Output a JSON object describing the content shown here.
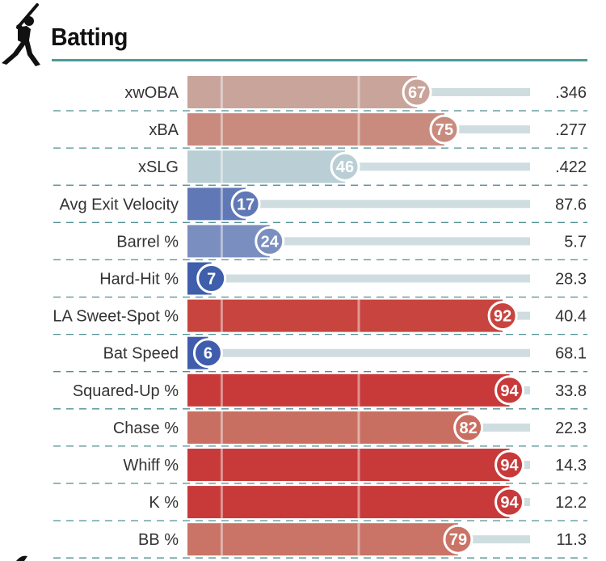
{
  "header": {
    "title": "Batting"
  },
  "chart_data": {
    "type": "bar",
    "orientation": "horizontal",
    "title": "Batting",
    "xlim": [
      0,
      100
    ],
    "reference_lines": [
      10,
      50
    ],
    "color_scale": {
      "low": "#3d5eab",
      "mid": "#b9d1d8",
      "high": "#c9353a"
    },
    "rows": [
      {
        "label": "xwOBA",
        "percentile": 67,
        "value": ".346",
        "color": "#c9a49b"
      },
      {
        "label": "xBA",
        "percentile": 75,
        "value": ".277",
        "color": "#c98b7e"
      },
      {
        "label": "xSLG",
        "percentile": 46,
        "value": ".422",
        "color": "#b9cfd5"
      },
      {
        "label": "Avg Exit Velocity",
        "percentile": 17,
        "value": "87.6",
        "color": "#6079b6"
      },
      {
        "label": "Barrel %",
        "percentile": 24,
        "value": "5.7",
        "color": "#7a8fc0"
      },
      {
        "label": "Hard-Hit %",
        "percentile": 7,
        "value": "28.3",
        "color": "#3f5eab"
      },
      {
        "label": "LA Sweet-Spot %",
        "percentile": 92,
        "value": "40.4",
        "color": "#c8443e"
      },
      {
        "label": "Bat Speed",
        "percentile": 6,
        "value": "68.1",
        "color": "#3f5dac"
      },
      {
        "label": "Squared-Up %",
        "percentile": 94,
        "value": "33.8",
        "color": "#c83a3a"
      },
      {
        "label": "Chase %",
        "percentile": 82,
        "value": "22.3",
        "color": "#c96f62"
      },
      {
        "label": "Whiff %",
        "percentile": 94,
        "value": "14.3",
        "color": "#c83a3a"
      },
      {
        "label": "K %",
        "percentile": 94,
        "value": "12.2",
        "color": "#c83a3a"
      },
      {
        "label": "BB %",
        "percentile": 79,
        "value": "11.3",
        "color": "#c97466"
      }
    ]
  }
}
